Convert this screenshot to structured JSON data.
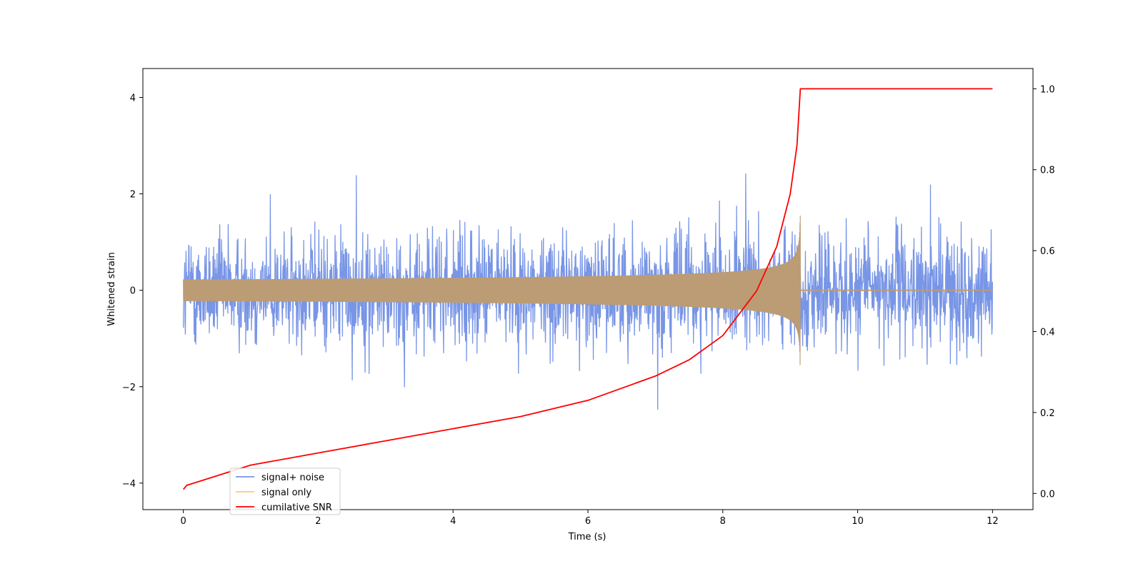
{
  "chart_data": {
    "type": "line",
    "title": "",
    "xlabel": "Time (s)",
    "ylabel": "Whitened strain",
    "y2label": "",
    "xlim": [
      -0.6,
      12.6
    ],
    "ylim": [
      -4.55,
      4.6
    ],
    "y2lim": [
      -0.04,
      1.05
    ],
    "xticks": [
      "0",
      "2",
      "4",
      "6",
      "8",
      "10",
      "12"
    ],
    "yticks": [
      "−4",
      "−2",
      "0",
      "2",
      "4"
    ],
    "y2ticks": [
      "0.0",
      "0.2",
      "0.4",
      "0.6",
      "0.8",
      "1.0"
    ],
    "grid": false,
    "legend_position": "lower-left",
    "series": [
      {
        "name": "signal+ noise",
        "color": "#7895e6",
        "axis": "left",
        "description_range": [
          -4.15,
          4.15
        ],
        "x_range": [
          0,
          12
        ]
      },
      {
        "name": "signal only",
        "color": "#bc9c74",
        "legend_color": "#f9c97e",
        "axis": "left",
        "x_range": [
          0,
          12
        ],
        "merger_time": 9.15,
        "peak_amplitude": 1.55,
        "early_amplitude": 0.04
      },
      {
        "name": "cumilative SNR",
        "color": "#ff0000",
        "axis": "right",
        "x": [
          0,
          0.05,
          1,
          2,
          3,
          4,
          5,
          6,
          7,
          7.5,
          8,
          8.5,
          8.8,
          9.0,
          9.1,
          9.15,
          9.5,
          10,
          11,
          12
        ],
        "y": [
          0.01,
          0.02,
          0.07,
          0.1,
          0.13,
          0.16,
          0.19,
          0.23,
          0.29,
          0.33,
          0.39,
          0.5,
          0.61,
          0.74,
          0.86,
          1.0,
          1.0,
          1.0,
          1.0,
          1.0
        ]
      }
    ]
  }
}
